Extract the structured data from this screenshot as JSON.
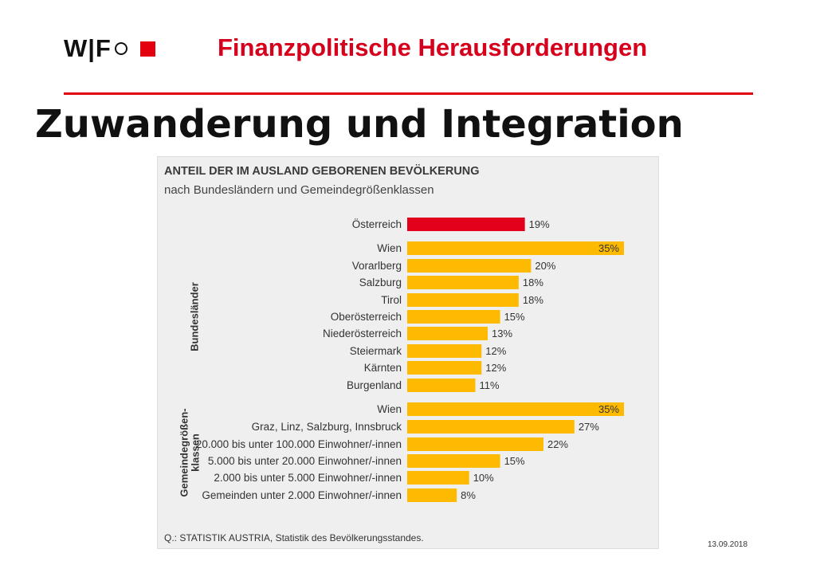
{
  "logo": {
    "text": "W|F"
  },
  "header": {
    "title": "Finanzpolitische Herausforderungen"
  },
  "slide": {
    "title": "Zuwanderung und Integration",
    "date": "13.09.2018"
  },
  "colors": {
    "accent": "#e3000f",
    "highlight_bar": "#e3001b",
    "bar": "#fdba00"
  },
  "chart_data": {
    "type": "bar",
    "orientation": "horizontal",
    "title": "ANTEIL DER IM AUSLAND GEBORENEN BEVÖLKERUNG",
    "subtitle": "nach Bundesländern und Gemeindegrößenklassen",
    "source": "Q.: STATISTIK AUSTRIA, Statistik des Bevölkerungsstandes.",
    "unit": "%",
    "xlim": [
      0,
      40
    ],
    "groups": [
      {
        "label": "",
        "categories": [
          "Österreich"
        ],
        "values": [
          19
        ],
        "highlight": true
      },
      {
        "label": "Bundesländer",
        "categories": [
          "Wien",
          "Vorarlberg",
          "Salzburg",
          "Tirol",
          "Oberösterreich",
          "Niederösterreich",
          "Steiermark",
          "Kärnten",
          "Burgenland"
        ],
        "values": [
          35,
          20,
          18,
          18,
          15,
          13,
          12,
          12,
          11
        ]
      },
      {
        "label": "Gemeindegrößen-\nklassen",
        "categories": [
          "Wien",
          "Graz, Linz, Salzburg, Innsbruck",
          "20.000 bis unter 100.000 Einwohner/-innen",
          "5.000 bis unter 20.000 Einwohner/-innen",
          "2.000 bis unter 5.000 Einwohner/-innen",
          "Gemeinden unter 2.000 Einwohner/-innen"
        ],
        "values": [
          35,
          27,
          22,
          15,
          10,
          8
        ]
      }
    ]
  }
}
